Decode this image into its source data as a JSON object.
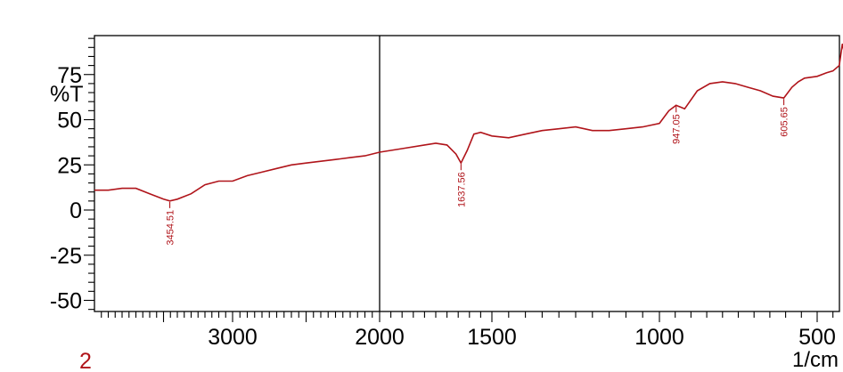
{
  "chart_data": {
    "type": "line",
    "title": "",
    "panel_label": "2",
    "xlabel": "1/cm",
    "ylabel": "%T",
    "xlim": [
      4000,
      400
    ],
    "ylim": [
      -55,
      97
    ],
    "x_reversed": true,
    "grid": false,
    "x_ticks": [
      3000,
      2000,
      1500,
      1000,
      500
    ],
    "y_ticks": [
      75,
      50,
      25,
      0,
      -25,
      -50
    ],
    "x_tick_labels": [
      "3000",
      "2000",
      "1500",
      "1000",
      "500"
    ],
    "y_tick_labels": [
      "75",
      "50",
      "25",
      "0",
      "-25",
      "-50"
    ],
    "vertical_marker_x": 2000,
    "colors": {
      "line": "#b0141a",
      "axis": "#000000"
    },
    "series": [
      {
        "x": [
          4000,
          3900,
          3800,
          3700,
          3600,
          3500,
          3454.51,
          3400,
          3300,
          3200,
          3100,
          3000,
          2900,
          2800,
          2700,
          2600,
          2500,
          2400,
          2300,
          2200,
          2100,
          2000,
          1900,
          1800,
          1750,
          1700,
          1660,
          1637.56,
          1610,
          1580,
          1550,
          1500,
          1450,
          1400,
          1350,
          1300,
          1250,
          1200,
          1150,
          1100,
          1050,
          1000,
          970,
          947.05,
          920,
          880,
          840,
          800,
          760,
          720,
          680,
          640,
          605.65,
          580,
          560,
          540,
          500,
          470,
          450,
          430,
          420,
          410,
          400
        ],
        "y": [
          11,
          11,
          12,
          12,
          9,
          6,
          5,
          6,
          9,
          14,
          16,
          16,
          19,
          21,
          23,
          25,
          26,
          27,
          28,
          29,
          30,
          32,
          34,
          36,
          37,
          36,
          31,
          26,
          33,
          42,
          43,
          41,
          40,
          42,
          44,
          45,
          46,
          44,
          44,
          45,
          46,
          48,
          55,
          58,
          56,
          66,
          70,
          71,
          70,
          68,
          66,
          63,
          62,
          68,
          71,
          73,
          74,
          76,
          77,
          80,
          92,
          84,
          83
        ]
      }
    ],
    "annotations": [
      {
        "x": 3454.51,
        "y": 5,
        "label": "3454.51"
      },
      {
        "x": 1637.56,
        "y": 26,
        "label": "1637.56"
      },
      {
        "x": 947.05,
        "y": 58,
        "label": "947.05"
      },
      {
        "x": 605.65,
        "y": 62,
        "label": "605.65"
      }
    ]
  }
}
